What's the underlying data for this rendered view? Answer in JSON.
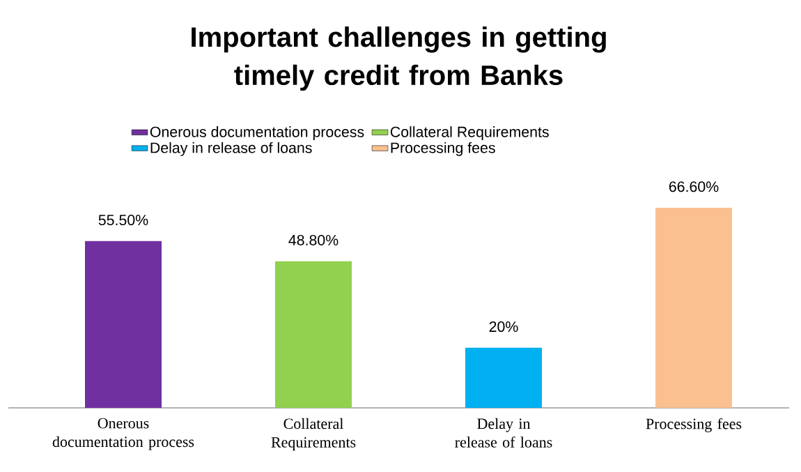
{
  "chart_data": {
    "type": "bar",
    "title": "Important challenges in getting timely credit from Banks",
    "categories": [
      "Onerous documentation process",
      "Collateral Requirements",
      "Delay in release of loans",
      "Processing fees"
    ],
    "series": [
      {
        "name": "Onerous documentation process",
        "color": "#7030a0",
        "values": [
          55.5,
          null,
          null,
          null
        ],
        "value_labels": [
          "55.50%",
          null,
          null,
          null
        ]
      },
      {
        "name": "Collateral Requirements",
        "color": "#92d050",
        "values": [
          null,
          48.8,
          null,
          null
        ],
        "value_labels": [
          null,
          "48.80%",
          null,
          null
        ]
      },
      {
        "name": "Delay in release of loans",
        "color": "#00b0f0",
        "values": [
          null,
          null,
          20,
          null
        ],
        "value_labels": [
          null,
          null,
          "20%",
          null
        ]
      },
      {
        "name": "Processing fees",
        "color": "#fac090",
        "values": [
          null,
          null,
          null,
          66.6
        ],
        "value_labels": [
          null,
          null,
          null,
          "66.60%"
        ]
      }
    ],
    "legend": "top"
  }
}
